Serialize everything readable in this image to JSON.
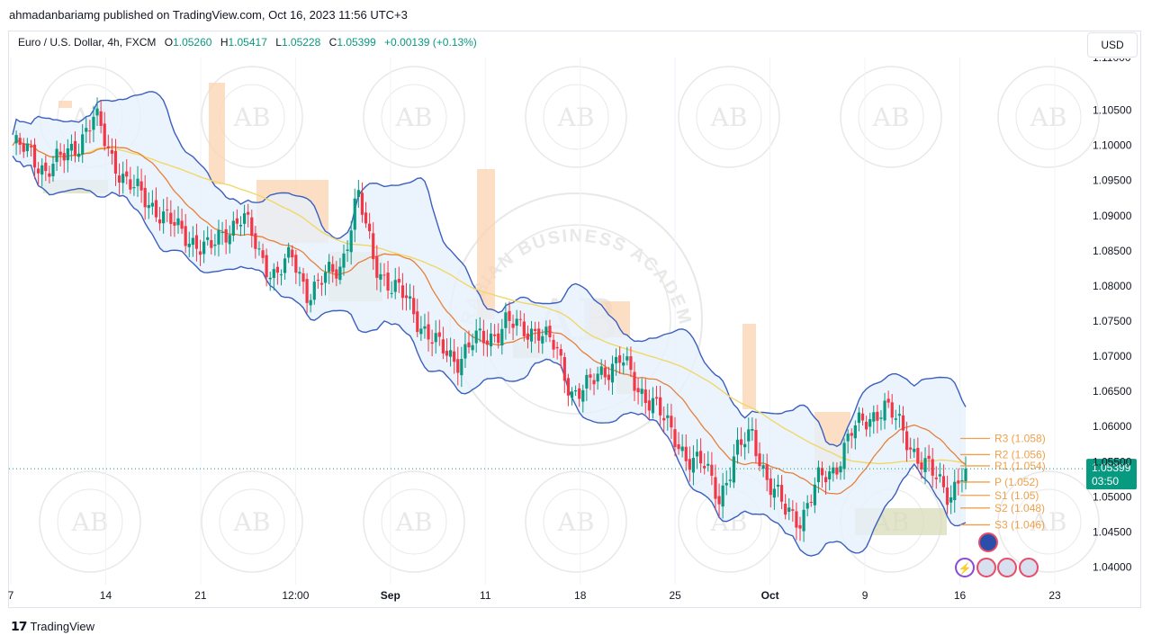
{
  "caption": "ahmadanbariamg published on TradingView.com, Oct 16, 2023 11:56 UTC+3",
  "legend": {
    "symbol": "Euro / U.S. Dollar, 4h, FXCM",
    "o_label": "O",
    "o": "1.05260",
    "h_label": "H",
    "h": "1.05417",
    "l_label": "L",
    "l": "1.05228",
    "c_label": "C",
    "c": "1.05399",
    "change": "+0.00139 (+0.13%)"
  },
  "currency_button": "USD",
  "last_price_tag": {
    "price": "1.05399",
    "countdown": "03:50"
  },
  "footer": {
    "brand": "TradingView"
  },
  "colors": {
    "up": "#089981",
    "down": "#f23645",
    "band": "#3b5fc0",
    "band_fill": "#e6f0fb",
    "ma_orange": "#e8803a",
    "ma_yellow": "#f0d867",
    "pivot": "#f0a04b",
    "supply_zone": "#fbd3b0",
    "demand_zone": "#d9dcb8",
    "price_tag": "#089981"
  },
  "chart_data": {
    "type": "line",
    "series_kind": "candlestick",
    "xlabel": "",
    "ylabel": "",
    "ylim": [
      1.0375,
      1.1125
    ],
    "x_ticks": [
      "7",
      "14",
      "21",
      "12:00",
      "Sep",
      "11",
      "18",
      "25",
      "Oct",
      "9",
      "16",
      "23"
    ],
    "y_ticks": [
      "1.10500",
      "1.10000",
      "1.09500",
      "1.09000",
      "1.08500",
      "1.08000",
      "1.07500",
      "1.07000",
      "1.06500",
      "1.06000",
      "1.05500",
      "1.05000",
      "1.04500",
      "1.04000"
    ],
    "price_path": [
      1.1,
      1.099,
      1.0965,
      1.098,
      1.1005,
      1.104,
      1.0985,
      1.0945,
      1.0925,
      1.0905,
      1.088,
      1.0865,
      1.085,
      1.088,
      1.09,
      1.0845,
      1.0815,
      1.084,
      1.079,
      1.081,
      1.083,
      1.093,
      1.0835,
      1.08,
      1.078,
      1.074,
      1.071,
      1.0695,
      1.072,
      1.0725,
      1.075,
      1.0735,
      1.074,
      1.071,
      1.065,
      1.0655,
      1.068,
      1.07,
      1.065,
      1.064,
      1.059,
      1.056,
      1.0545,
      1.05,
      1.056,
      1.059,
      1.052,
      1.048,
      1.047,
      1.052,
      1.054,
      1.059,
      1.061,
      1.063,
      1.06,
      1.056,
      1.053,
      1.0505,
      1.054
    ],
    "pivot_levels": [
      {
        "label": "R3 (1.058)",
        "value": 1.0583
      },
      {
        "label": "R2 (1.056)",
        "value": 1.056
      },
      {
        "label": "R1 (1.054)",
        "value": 1.0544
      },
      {
        "label": "P (1.052)",
        "value": 1.0521
      },
      {
        "label": "S1 (1.05)",
        "value": 1.0502
      },
      {
        "label": "S2 (1.048)",
        "value": 1.0484
      },
      {
        "label": "S3 (1.046)",
        "value": 1.046
      }
    ],
    "last_price": 1.05399
  },
  "watermark_text": "ARABIAN BUSINESS ACADEMY",
  "watermark_mark": "AB"
}
